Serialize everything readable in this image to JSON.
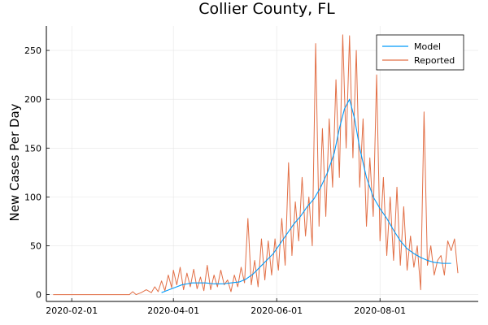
{
  "chart_data": {
    "type": "line",
    "title": "Collier County, FL",
    "xlabel": "",
    "ylabel": "New Cases Per Day",
    "x_axis": {
      "type": "date",
      "range": [
        "2020-01-17",
        "2020-09-28"
      ],
      "ticks": [
        "2020-02-01",
        "2020-04-01",
        "2020-06-01",
        "2020-08-01"
      ],
      "tick_labels": [
        "2020-02-01",
        "2020-04-01",
        "2020-06-01",
        "2020-08-01"
      ]
    },
    "y_axis": {
      "range": [
        -7,
        275
      ],
      "ticks": [
        0,
        50,
        100,
        150,
        200,
        250
      ],
      "tick_labels": [
        "0",
        "50",
        "100",
        "150",
        "200",
        "250"
      ]
    },
    "grid": true,
    "legend_position": "top-right",
    "series": [
      {
        "name": "Model",
        "color": "#009af9",
        "points": [
          [
            "2020-03-25",
            2
          ],
          [
            "2020-03-28",
            4
          ],
          [
            "2020-03-31",
            6
          ],
          [
            "2020-04-03",
            8
          ],
          [
            "2020-04-06",
            10
          ],
          [
            "2020-04-09",
            11
          ],
          [
            "2020-04-12",
            12
          ],
          [
            "2020-04-16",
            12
          ],
          [
            "2020-04-20",
            12
          ],
          [
            "2020-04-25",
            11
          ],
          [
            "2020-04-30",
            11
          ],
          [
            "2020-05-05",
            12
          ],
          [
            "2020-05-10",
            13
          ],
          [
            "2020-05-14",
            16
          ],
          [
            "2020-05-18",
            21
          ],
          [
            "2020-05-22",
            28
          ],
          [
            "2020-05-26",
            35
          ],
          [
            "2020-05-30",
            42
          ],
          [
            "2020-06-03",
            52
          ],
          [
            "2020-06-07",
            62
          ],
          [
            "2020-06-11",
            72
          ],
          [
            "2020-06-15",
            80
          ],
          [
            "2020-06-19",
            90
          ],
          [
            "2020-06-23",
            98
          ],
          [
            "2020-06-27",
            110
          ],
          [
            "2020-07-01",
            125
          ],
          [
            "2020-07-05",
            145
          ],
          [
            "2020-07-08",
            170
          ],
          [
            "2020-07-11",
            190
          ],
          [
            "2020-07-14",
            200
          ],
          [
            "2020-07-17",
            180
          ],
          [
            "2020-07-20",
            150
          ],
          [
            "2020-07-24",
            120
          ],
          [
            "2020-07-28",
            100
          ],
          [
            "2020-08-01",
            88
          ],
          [
            "2020-08-05",
            78
          ],
          [
            "2020-08-09",
            66
          ],
          [
            "2020-08-13",
            55
          ],
          [
            "2020-08-17",
            47
          ],
          [
            "2020-08-21",
            42
          ],
          [
            "2020-08-25",
            38
          ],
          [
            "2020-08-29",
            35
          ],
          [
            "2020-09-02",
            33
          ],
          [
            "2020-09-07",
            32
          ],
          [
            "2020-09-12",
            32
          ]
        ]
      },
      {
        "name": "Reported",
        "color": "#e26f46",
        "points": [
          [
            "2020-01-21",
            0
          ],
          [
            "2020-03-06",
            0
          ],
          [
            "2020-03-08",
            3
          ],
          [
            "2020-03-10",
            0
          ],
          [
            "2020-03-13",
            2
          ],
          [
            "2020-03-16",
            5
          ],
          [
            "2020-03-19",
            2
          ],
          [
            "2020-03-21",
            8
          ],
          [
            "2020-03-23",
            3
          ],
          [
            "2020-03-25",
            14
          ],
          [
            "2020-03-27",
            4
          ],
          [
            "2020-03-29",
            20
          ],
          [
            "2020-03-31",
            7
          ],
          [
            "2020-04-01",
            25
          ],
          [
            "2020-04-03",
            10
          ],
          [
            "2020-04-05",
            28
          ],
          [
            "2020-04-07",
            5
          ],
          [
            "2020-04-09",
            22
          ],
          [
            "2020-04-11",
            8
          ],
          [
            "2020-04-13",
            26
          ],
          [
            "2020-04-15",
            6
          ],
          [
            "2020-04-17",
            18
          ],
          [
            "2020-04-19",
            4
          ],
          [
            "2020-04-21",
            30
          ],
          [
            "2020-04-23",
            5
          ],
          [
            "2020-04-25",
            20
          ],
          [
            "2020-04-27",
            8
          ],
          [
            "2020-04-29",
            25
          ],
          [
            "2020-05-01",
            10
          ],
          [
            "2020-05-03",
            15
          ],
          [
            "2020-05-05",
            3
          ],
          [
            "2020-05-07",
            20
          ],
          [
            "2020-05-09",
            8
          ],
          [
            "2020-05-11",
            28
          ],
          [
            "2020-05-13",
            12
          ],
          [
            "2020-05-15",
            78
          ],
          [
            "2020-05-17",
            10
          ],
          [
            "2020-05-19",
            35
          ],
          [
            "2020-05-21",
            8
          ],
          [
            "2020-05-23",
            57
          ],
          [
            "2020-05-25",
            15
          ],
          [
            "2020-05-27",
            55
          ],
          [
            "2020-05-29",
            20
          ],
          [
            "2020-05-31",
            57
          ],
          [
            "2020-06-02",
            25
          ],
          [
            "2020-06-04",
            78
          ],
          [
            "2020-06-06",
            30
          ],
          [
            "2020-06-08",
            135
          ],
          [
            "2020-06-10",
            40
          ],
          [
            "2020-06-12",
            95
          ],
          [
            "2020-06-14",
            55
          ],
          [
            "2020-06-16",
            120
          ],
          [
            "2020-06-18",
            60
          ],
          [
            "2020-06-20",
            100
          ],
          [
            "2020-06-22",
            50
          ],
          [
            "2020-06-24",
            257
          ],
          [
            "2020-06-26",
            70
          ],
          [
            "2020-06-28",
            170
          ],
          [
            "2020-06-30",
            80
          ],
          [
            "2020-07-02",
            180
          ],
          [
            "2020-07-04",
            110
          ],
          [
            "2020-07-06",
            220
          ],
          [
            "2020-07-08",
            120
          ],
          [
            "2020-07-10",
            266
          ],
          [
            "2020-07-12",
            150
          ],
          [
            "2020-07-14",
            265
          ],
          [
            "2020-07-16",
            140
          ],
          [
            "2020-07-18",
            250
          ],
          [
            "2020-07-20",
            110
          ],
          [
            "2020-07-22",
            180
          ],
          [
            "2020-07-24",
            70
          ],
          [
            "2020-07-26",
            140
          ],
          [
            "2020-07-28",
            80
          ],
          [
            "2020-07-30",
            225
          ],
          [
            "2020-08-01",
            55
          ],
          [
            "2020-08-03",
            120
          ],
          [
            "2020-08-05",
            40
          ],
          [
            "2020-08-07",
            100
          ],
          [
            "2020-08-09",
            35
          ],
          [
            "2020-08-11",
            110
          ],
          [
            "2020-08-13",
            30
          ],
          [
            "2020-08-15",
            90
          ],
          [
            "2020-08-17",
            25
          ],
          [
            "2020-08-19",
            60
          ],
          [
            "2020-08-21",
            28
          ],
          [
            "2020-08-23",
            50
          ],
          [
            "2020-08-25",
            5
          ],
          [
            "2020-08-27",
            187
          ],
          [
            "2020-08-29",
            30
          ],
          [
            "2020-08-31",
            50
          ],
          [
            "2020-09-02",
            20
          ],
          [
            "2020-09-04",
            35
          ],
          [
            "2020-09-06",
            40
          ],
          [
            "2020-09-08",
            20
          ],
          [
            "2020-09-10",
            55
          ],
          [
            "2020-09-12",
            45
          ],
          [
            "2020-09-14",
            57
          ],
          [
            "2020-09-16",
            22
          ]
        ]
      }
    ]
  }
}
